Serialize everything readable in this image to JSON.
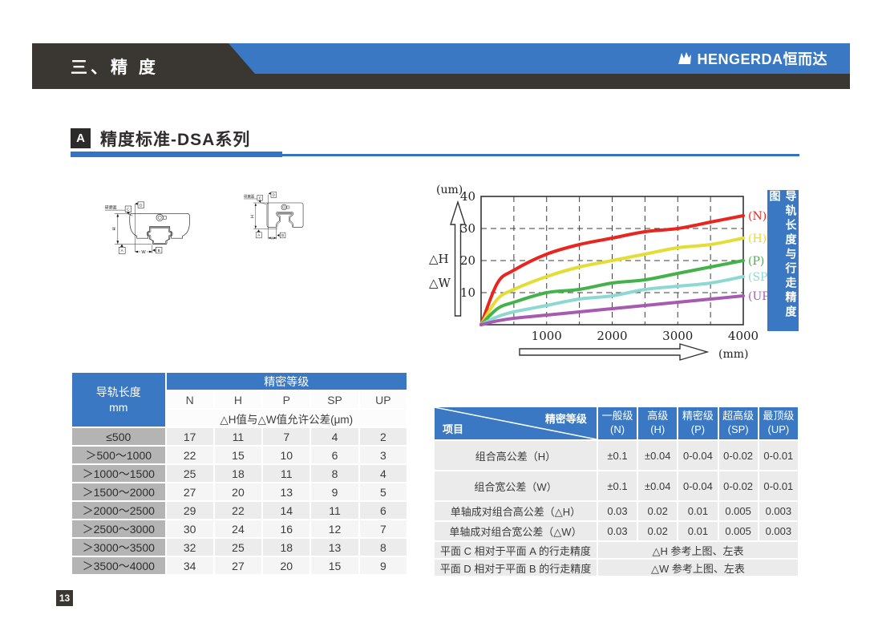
{
  "page": {
    "number": "13"
  },
  "header": {
    "bar_title": "三、精 度",
    "brand_text": "HENGERDA恒而达"
  },
  "section": {
    "badge": "A",
    "title": "精度标准-DSA系列"
  },
  "diagrams": {
    "left": {
      "surface": "研磨面",
      "c": "C",
      "d": "D",
      "a": "A",
      "b": "B",
      "h": "H",
      "w": "W"
    },
    "right": {
      "surface": "研磨面",
      "c": "C",
      "d": "D",
      "a": "A",
      "b": "B",
      "h": "H",
      "w": "W"
    }
  },
  "side_label": {
    "text": "导轨长度与行走精度图"
  },
  "chart_data": {
    "type": "line",
    "title": "导轨长度与行走精度图",
    "x_unit_label": "(mm)",
    "y_unit_label": "(um)",
    "y_axis_annotations": [
      "△H",
      "△W"
    ],
    "xlim": [
      0,
      4000
    ],
    "ylim": [
      0,
      40
    ],
    "x_ticks": [
      1000,
      2000,
      3000,
      4000
    ],
    "y_ticks": [
      10,
      20,
      30,
      40
    ],
    "grid": "dashed",
    "legend_position": "right-of-curves",
    "x": [
      0,
      250,
      500,
      1000,
      1500,
      2000,
      2500,
      3000,
      3500,
      4000
    ],
    "series": [
      {
        "name": "(N)",
        "color": "#e8251f",
        "values": [
          0,
          13,
          17,
          22,
          25,
          27,
          29,
          30,
          32,
          34
        ]
      },
      {
        "name": "(H)",
        "color": "#e3dd35",
        "values": [
          0,
          8,
          11,
          15,
          18,
          20,
          22,
          24,
          25,
          27
        ]
      },
      {
        "name": "(P)",
        "color": "#43b24a",
        "values": [
          0,
          5,
          7,
          10,
          11,
          13,
          14,
          16,
          18,
          20
        ]
      },
      {
        "name": "(SP)",
        "color": "#8ed8d3",
        "values": [
          0,
          2.5,
          4,
          6,
          8,
          9,
          11,
          12,
          13,
          15
        ]
      },
      {
        "name": "(UP)",
        "color": "#a65ab0",
        "values": [
          0,
          1.2,
          2,
          3,
          4,
          5,
          6,
          7,
          8,
          9
        ]
      }
    ]
  },
  "left_table": {
    "corner_line1": "导轨长度",
    "corner_line2": "mm",
    "group_header": "精密等级",
    "grades": [
      "N",
      "H",
      "P",
      "SP",
      "UP"
    ],
    "subheader": "△H值与△W值允许公差(μm)",
    "rows": [
      {
        "range": "≤500",
        "values": [
          "17",
          "11",
          "7",
          "4",
          "2"
        ]
      },
      {
        "range": "＞500～1000",
        "values": [
          "22",
          "15",
          "10",
          "6",
          "3"
        ]
      },
      {
        "range": "＞1000～1500",
        "values": [
          "25",
          "18",
          "11",
          "8",
          "4"
        ]
      },
      {
        "range": "＞1500～2000",
        "values": [
          "27",
          "20",
          "13",
          "9",
          "5"
        ]
      },
      {
        "range": "＞2000～2500",
        "values": [
          "29",
          "22",
          "14",
          "11",
          "6"
        ]
      },
      {
        "range": "＞2500～3000",
        "values": [
          "30",
          "24",
          "16",
          "12",
          "7"
        ]
      },
      {
        "range": "＞3000～3500",
        "values": [
          "32",
          "25",
          "18",
          "13",
          "8"
        ]
      },
      {
        "range": "＞3500～4000",
        "values": [
          "34",
          "27",
          "20",
          "15",
          "9"
        ]
      }
    ]
  },
  "right_table": {
    "diag_top": "精密等级",
    "diag_bottom": "项目",
    "columns": [
      {
        "l1": "一般级",
        "l2": "(N)"
      },
      {
        "l1": "高级",
        "l2": "(H)"
      },
      {
        "l1": "精密级",
        "l2": "(P)"
      },
      {
        "l1": "超高级",
        "l2": "(SP)"
      },
      {
        "l1": "最顶级",
        "l2": "(UP)"
      }
    ],
    "rows": [
      {
        "label": "组合高公差（H）",
        "values": [
          "±0.1",
          "±0.04",
          "0-0.04",
          "0-0.02",
          "0-0.01"
        ],
        "tall": true
      },
      {
        "label": "组合宽公差（W）",
        "values": [
          "±0.1",
          "±0.04",
          "0-0.04",
          "0-0.02",
          "0-0.01"
        ],
        "tall": true
      },
      {
        "label": "单轴成对组合高公差（△H）",
        "values": [
          "0.03",
          "0.02",
          "0.01",
          "0.005",
          "0.003"
        ]
      },
      {
        "label": "单轴成对组合宽公差（△W）",
        "values": [
          "0.03",
          "0.02",
          "0.01",
          "0.005",
          "0.003"
        ]
      },
      {
        "label": "平面 C 相对于平面 A 的行走精度",
        "span": "△H 参考上图、左表"
      },
      {
        "label": "平面 D 相对于平面 B 的行走精度",
        "span": "△W 参考上图、左表"
      }
    ]
  },
  "colors": {
    "accent_blue": "#3a78c3",
    "bar_dark": "#3a3733",
    "rail_seal_gray": "#8f8f8f"
  }
}
